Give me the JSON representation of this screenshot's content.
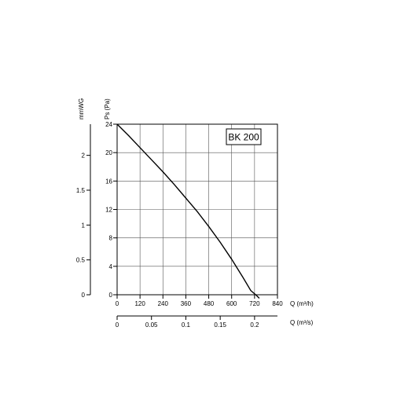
{
  "chart_data": {
    "type": "line",
    "title": "",
    "model_label": "BK 200",
    "series": [
      {
        "x": [
          0,
          60,
          120,
          180,
          240,
          300,
          360,
          420,
          480,
          540,
          600,
          660,
          700,
          730,
          745
        ],
        "y": [
          24,
          22.4,
          20.7,
          19.0,
          17.3,
          15.5,
          13.6,
          11.7,
          9.6,
          7.4,
          5.0,
          2.4,
          0.6,
          -0.1,
          -0.5
        ]
      }
    ],
    "x_axis": {
      "label": "Q (m³/h)",
      "range": [
        0,
        840
      ],
      "ticks": [
        "0",
        "120",
        "240",
        "360",
        "480",
        "600",
        "720",
        "840"
      ]
    },
    "x_axis_secondary": {
      "label": "Q (m³/s)",
      "range": [
        0,
        0.2333
      ],
      "ticks": [
        {
          "v": 0,
          "t": "0"
        },
        {
          "v": 0.05,
          "t": "0.05"
        },
        {
          "v": 0.1,
          "t": "0.1"
        },
        {
          "v": 0.15,
          "t": "0.15"
        },
        {
          "v": 0.2,
          "t": "0.2"
        }
      ]
    },
    "y_axis": {
      "label": "Ps (Pa)",
      "range": [
        0,
        24
      ],
      "ticks": [
        "0",
        "4",
        "8",
        "12",
        "16",
        "20",
        "24"
      ]
    },
    "y_axis_secondary": {
      "label": "mmWG",
      "range": [
        0,
        2.447
      ],
      "ticks": [
        {
          "v": 0,
          "t": "0"
        },
        {
          "v": 0.5,
          "t": "0.5"
        },
        {
          "v": 1,
          "t": "1"
        },
        {
          "v": 1.5,
          "t": "1.5"
        },
        {
          "v": 2,
          "t": "2"
        }
      ]
    },
    "grid": true
  }
}
